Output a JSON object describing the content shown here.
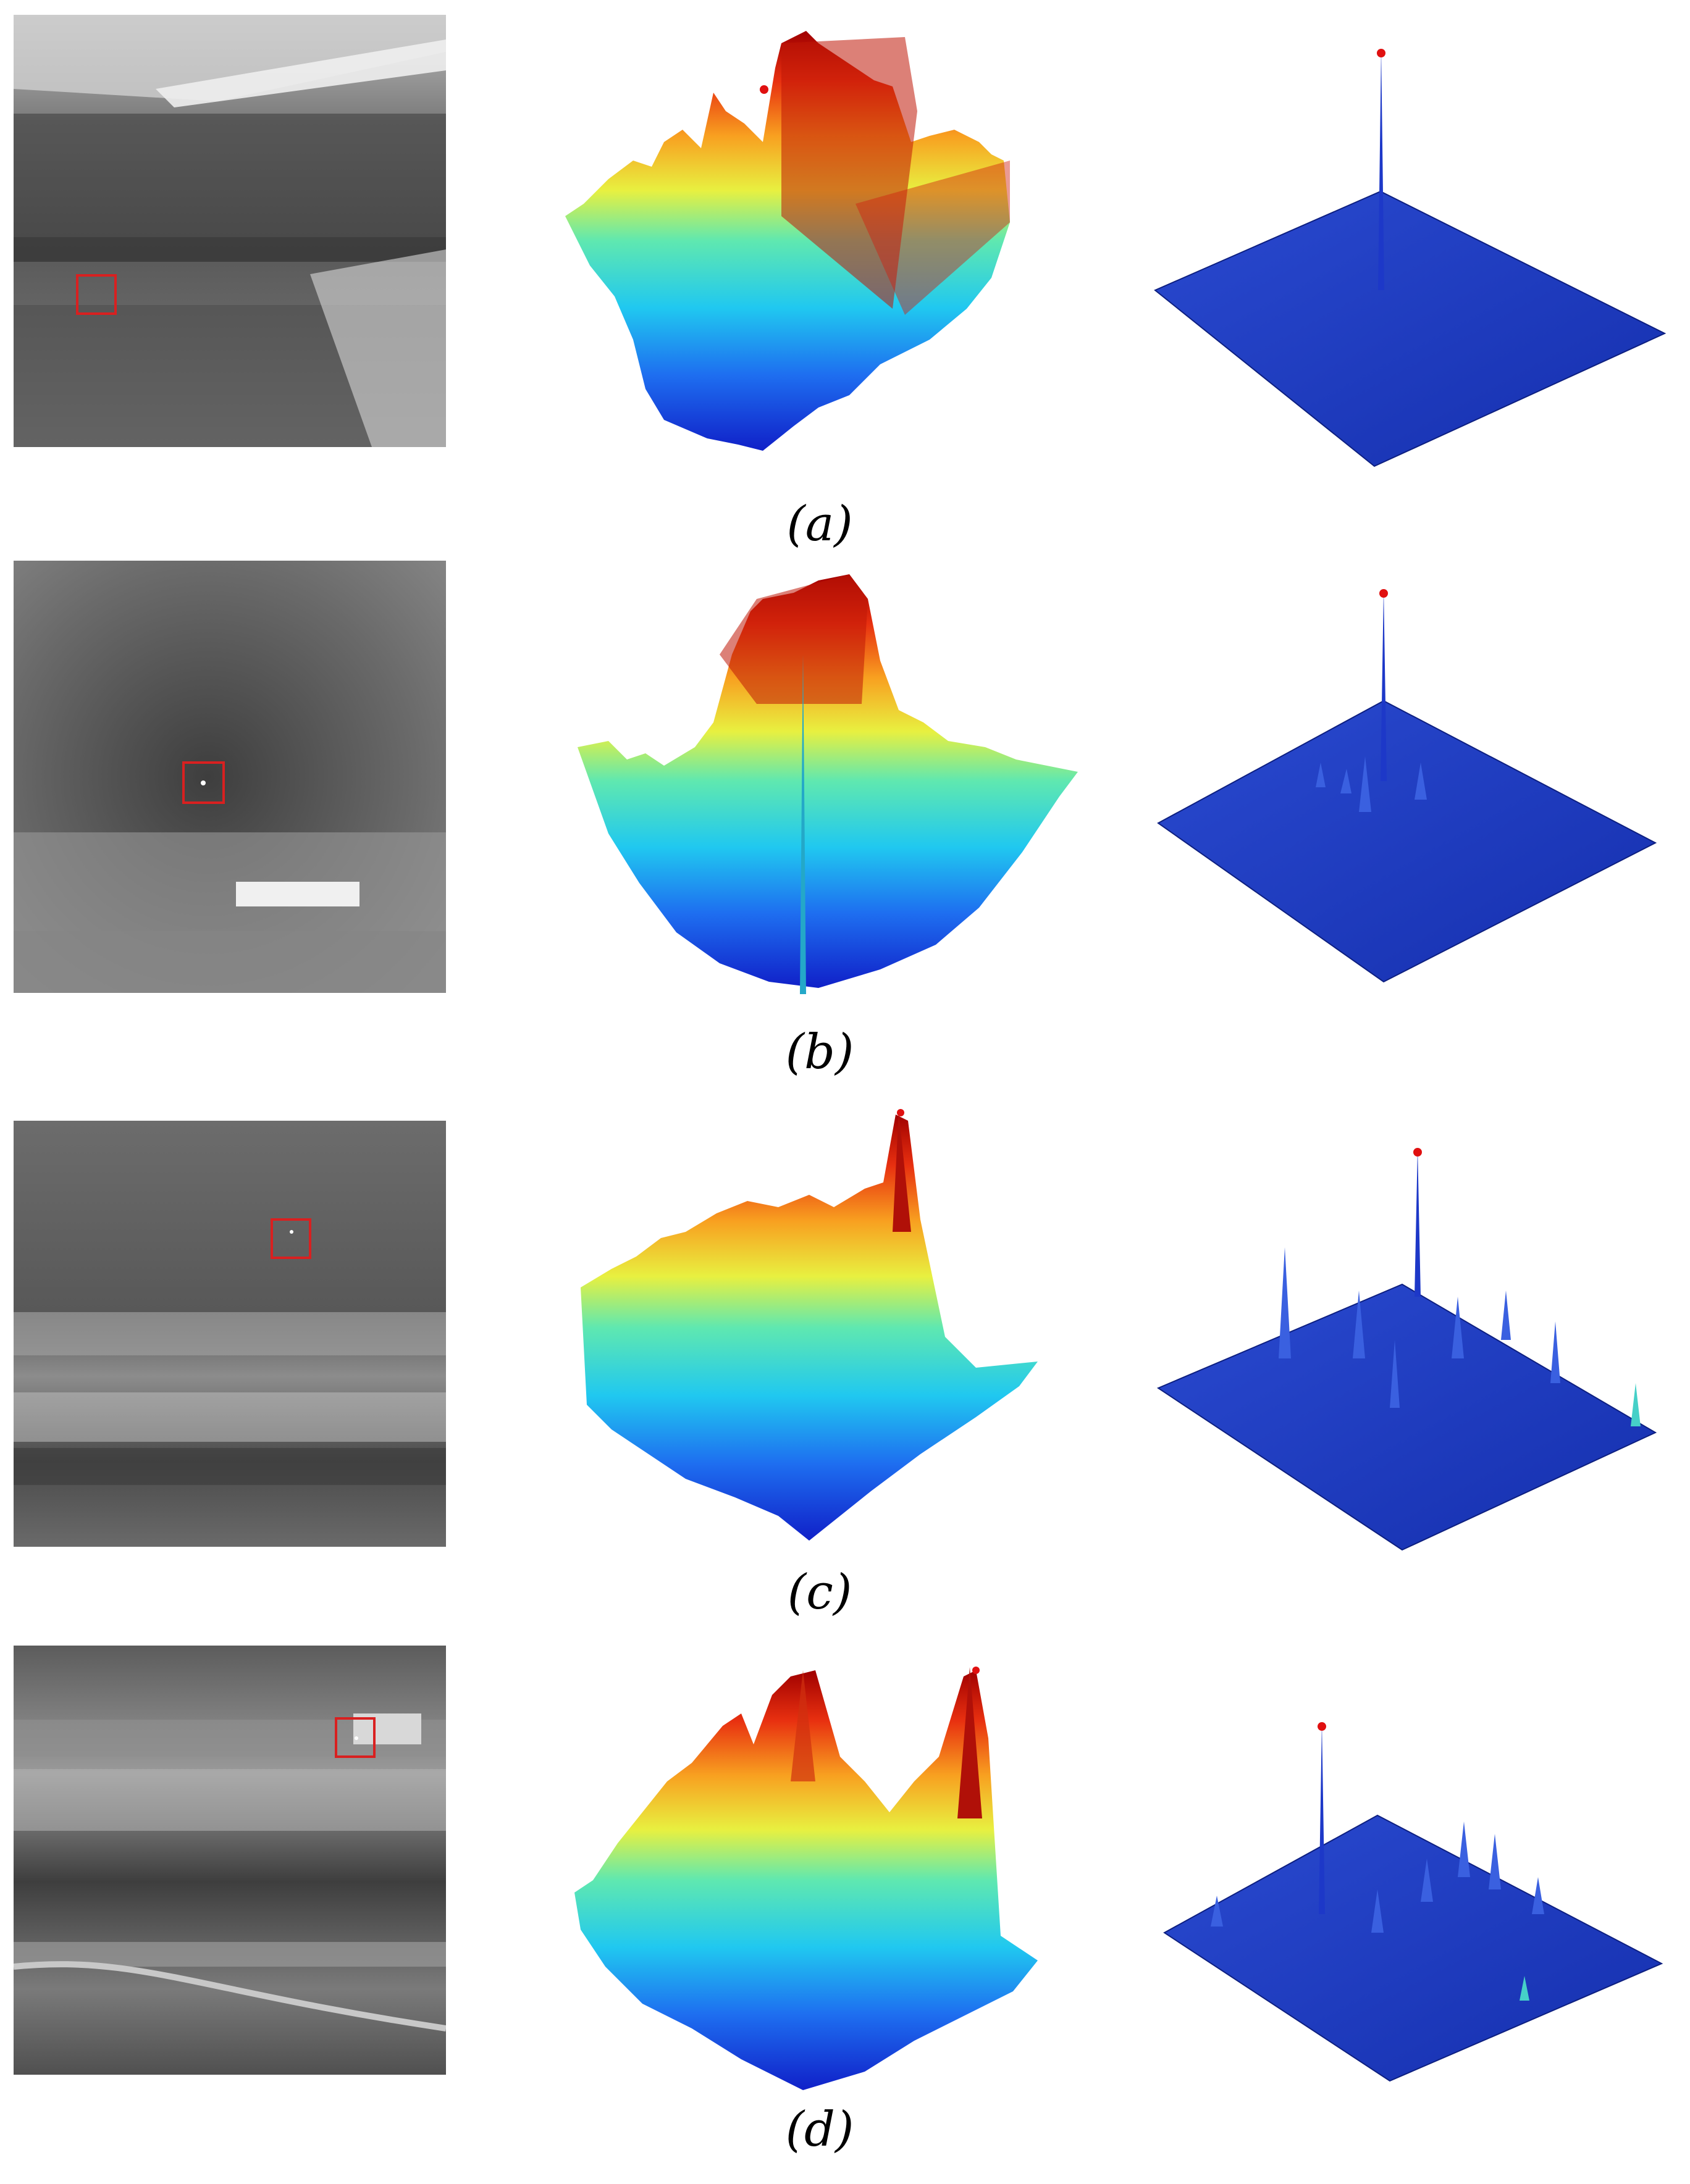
{
  "figure": {
    "rows": [
      {
        "caption": "(a)"
      },
      {
        "caption": "(b)"
      },
      {
        "caption": "(c)"
      },
      {
        "caption": "(d)"
      }
    ]
  },
  "colors": {
    "target_box": "#d92020",
    "peak_marker": "#e01010",
    "background": "#ffffff",
    "jet_low": "#1030d0",
    "jet_high": "#a00000",
    "flat_surface": "#1c3bc0"
  }
}
